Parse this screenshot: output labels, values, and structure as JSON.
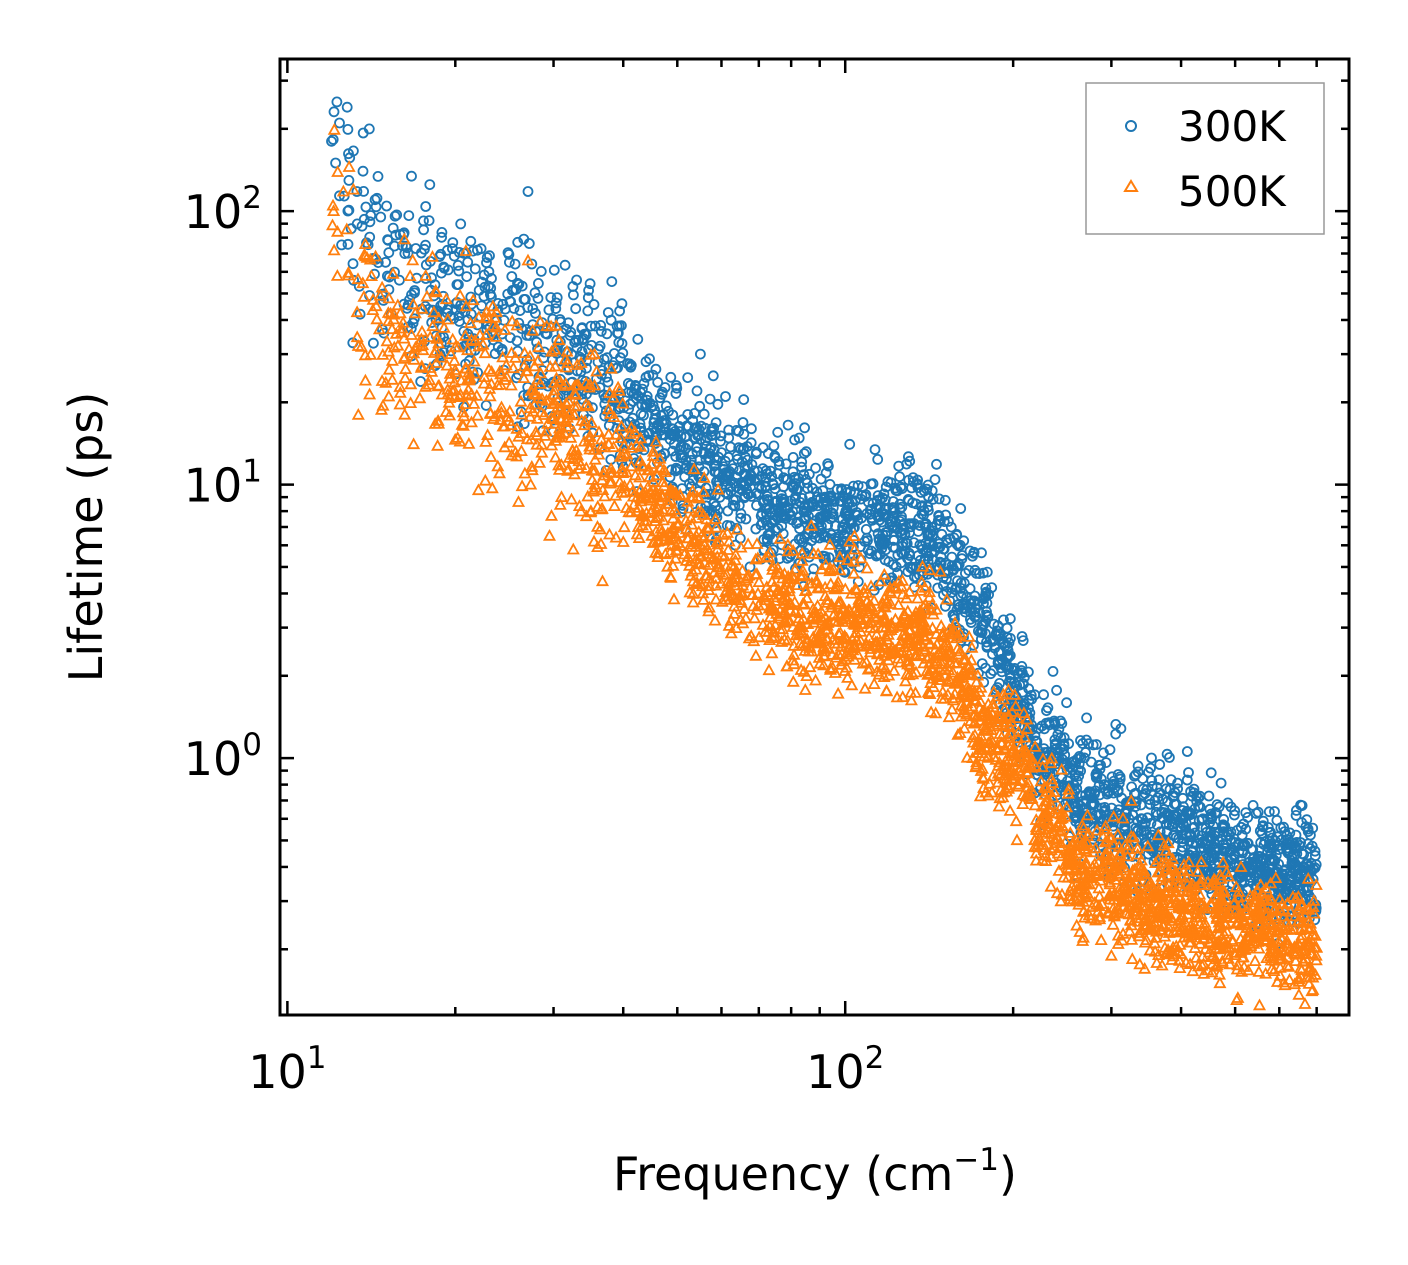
{
  "chart_data": {
    "type": "scatter",
    "title": "",
    "xlabel": "Frequency (cm",
    "xlabel_sup": "−1",
    "xlabel_suffix": ")",
    "ylabel": "Lifetime (ps)",
    "xscale": "log",
    "yscale": "log",
    "xlim": [
      9.7,
      800
    ],
    "ylim": [
      0.115,
      360
    ],
    "x_ticks": [
      {
        "base": "10",
        "exp": "1"
      },
      {
        "base": "10",
        "exp": "2"
      }
    ],
    "y_ticks": [
      {
        "base": "10",
        "exp": "0"
      },
      {
        "base": "10",
        "exp": "1"
      },
      {
        "base": "10",
        "exp": "2"
      }
    ],
    "legend_position": "top-right",
    "series": [
      {
        "name": "300K",
        "color": "#1f77b4",
        "marker": "circle",
        "note": "dense trend: freq -> lifetime",
        "trend": [
          [
            12,
            200
          ],
          [
            15,
            60
          ],
          [
            20,
            45
          ],
          [
            25,
            40
          ],
          [
            30,
            30
          ],
          [
            35,
            25
          ],
          [
            40,
            20
          ],
          [
            50,
            14
          ],
          [
            60,
            11
          ],
          [
            70,
            9
          ],
          [
            80,
            8.5
          ],
          [
            100,
            7.5
          ],
          [
            120,
            7
          ],
          [
            140,
            6.5
          ],
          [
            160,
            4.5
          ],
          [
            180,
            3
          ],
          [
            200,
            1.8
          ],
          [
            210,
            1.6
          ],
          [
            220,
            1.0
          ],
          [
            240,
            1.05
          ],
          [
            260,
            0.7
          ],
          [
            300,
            0.65
          ],
          [
            350,
            0.6
          ],
          [
            400,
            0.55
          ],
          [
            500,
            0.42
          ],
          [
            600,
            0.4
          ],
          [
            700,
            0.36
          ]
        ],
        "outliers": [
          [
            12.4,
            210
          ],
          [
            12.8,
            240
          ],
          [
            12.2,
            150
          ],
          [
            12.0,
            180
          ],
          [
            18,
            125
          ],
          [
            17.7,
            104
          ],
          [
            27,
            118
          ],
          [
            15,
            65
          ],
          [
            13.5,
            42
          ],
          [
            13.1,
            33
          ],
          [
            16.8,
            39
          ],
          [
            19,
            41
          ],
          [
            20.5,
            44
          ],
          [
            25,
            65
          ],
          [
            25.6,
            64
          ],
          [
            26,
            54
          ],
          [
            33,
            56
          ],
          [
            32.5,
            53
          ],
          [
            35,
            38
          ],
          [
            39,
            38
          ],
          [
            55,
            30
          ],
          [
            58,
            25
          ],
          [
            61,
            21
          ],
          [
            79,
            16.5
          ]
        ]
      },
      {
        "name": "500K",
        "color": "#ff7f0e",
        "marker": "triangle",
        "note": "dense trend: freq -> lifetime",
        "trend": [
          [
            12,
            110
          ],
          [
            15,
            35
          ],
          [
            20,
            25
          ],
          [
            25,
            22
          ],
          [
            30,
            18
          ],
          [
            35,
            13
          ],
          [
            40,
            11
          ],
          [
            50,
            7
          ],
          [
            60,
            5
          ],
          [
            70,
            3.8
          ],
          [
            80,
            3.4
          ],
          [
            100,
            3.2
          ],
          [
            120,
            3.0
          ],
          [
            140,
            2.8
          ],
          [
            160,
            2.0
          ],
          [
            180,
            1.2
          ],
          [
            200,
            1.0
          ],
          [
            210,
            0.95
          ],
          [
            220,
            0.6
          ],
          [
            240,
            0.55
          ],
          [
            260,
            0.4
          ],
          [
            300,
            0.35
          ],
          [
            350,
            0.3
          ],
          [
            400,
            0.27
          ],
          [
            500,
            0.24
          ],
          [
            600,
            0.22
          ],
          [
            700,
            0.2
          ]
        ],
        "outliers": [
          [
            12.9,
            145
          ],
          [
            12.1,
            100
          ],
          [
            12.3,
            84
          ],
          [
            12.6,
            118
          ],
          [
            18.2,
            68
          ],
          [
            17.7,
            58
          ],
          [
            27,
            66
          ],
          [
            13.8,
            24
          ],
          [
            13.4,
            18
          ],
          [
            15.2,
            21
          ],
          [
            15.4,
            37
          ],
          [
            17.5,
            31
          ],
          [
            18.7,
            23
          ],
          [
            20.5,
            24
          ],
          [
            24,
            11
          ],
          [
            27.3,
            10
          ],
          [
            28,
            14
          ],
          [
            29.5,
            6.5
          ],
          [
            31,
            9
          ],
          [
            35,
            8
          ],
          [
            36,
            8.3
          ]
        ]
      }
    ]
  }
}
